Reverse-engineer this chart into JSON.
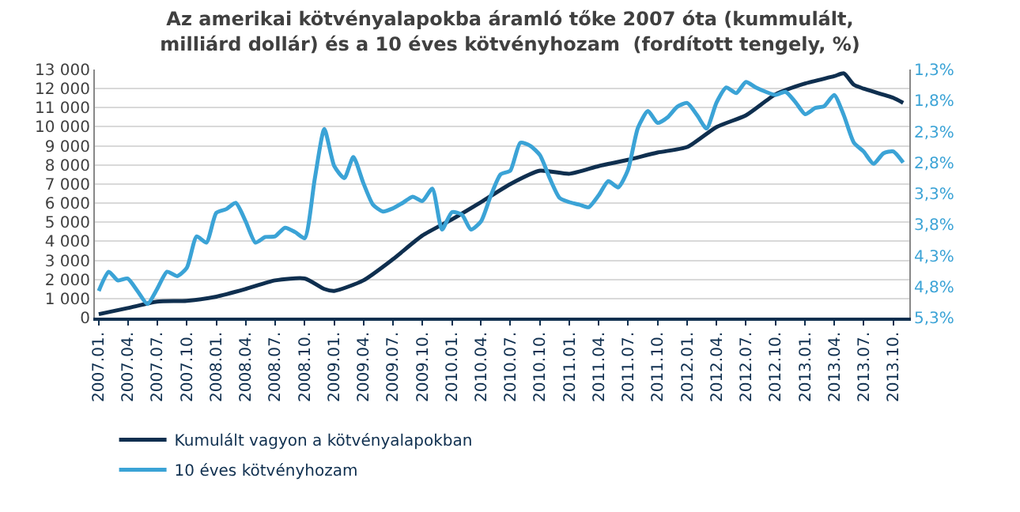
{
  "chart_data": {
    "type": "line",
    "title": "Az amerikai kötvényalapokba áramló tőke 2007 óta (kummulált,\nmilliárd dollár) és a 10 éves kötvényhozam  (fordított tengely, %)",
    "x": [
      "2007-01",
      "2007-02",
      "2007-03",
      "2007-04",
      "2007-05",
      "2007-06",
      "2007-07",
      "2007-08",
      "2007-09",
      "2007-10",
      "2007-11",
      "2007-12",
      "2008-01",
      "2008-02",
      "2008-03",
      "2008-04",
      "2008-05",
      "2008-06",
      "2008-07",
      "2008-08",
      "2008-09",
      "2008-10",
      "2008-11",
      "2008-12",
      "2009-01",
      "2009-02",
      "2009-03",
      "2009-04",
      "2009-05",
      "2009-06",
      "2009-07",
      "2009-08",
      "2009-09",
      "2009-10",
      "2009-11",
      "2009-12",
      "2010-01",
      "2010-02",
      "2010-03",
      "2010-04",
      "2010-05",
      "2010-06",
      "2010-07",
      "2010-08",
      "2010-09",
      "2010-10",
      "2010-11",
      "2010-12",
      "2011-01",
      "2011-02",
      "2011-03",
      "2011-04",
      "2011-05",
      "2011-06",
      "2011-07",
      "2011-08",
      "2011-09",
      "2011-10",
      "2011-11",
      "2011-12",
      "2012-01",
      "2012-02",
      "2012-03",
      "2012-04",
      "2012-05",
      "2012-06",
      "2012-07",
      "2012-08",
      "2012-09",
      "2012-10",
      "2012-11",
      "2012-12",
      "2013-01",
      "2013-02",
      "2013-03",
      "2013-04",
      "2013-05",
      "2013-06",
      "2013-07",
      "2013-08",
      "2013-09",
      "2013-10",
      "2013-11"
    ],
    "series": [
      {
        "name": "Kumulált vagyon a kötvényalapokban",
        "color": "#0f2f4f",
        "x": [
          "2007-01",
          "2007-04",
          "2007-07",
          "2007-10",
          "2008-01",
          "2008-04",
          "2008-07",
          "2008-10",
          "2008-12",
          "2009-01",
          "2009-04",
          "2009-07",
          "2009-10",
          "2010-01",
          "2010-04",
          "2010-07",
          "2010-10",
          "2011-01",
          "2011-04",
          "2011-07",
          "2011-10",
          "2012-01",
          "2012-04",
          "2012-07",
          "2012-10",
          "2013-01",
          "2013-04",
          "2013-05",
          "2013-06",
          "2013-07",
          "2013-10",
          "2013-11"
        ],
        "values": [
          180,
          500,
          840,
          880,
          1100,
          1500,
          1950,
          2050,
          1500,
          1400,
          1950,
          3050,
          4300,
          5150,
          6050,
          7000,
          7700,
          7540,
          7940,
          8270,
          8650,
          8940,
          9990,
          10600,
          11700,
          12270,
          12650,
          12800,
          12200,
          12000,
          11520,
          11250
        ]
      },
      {
        "name": "10 éves kötvényhozam",
        "color": "#3ba3d6",
        "axis": "y2",
        "values": [
          4.87,
          4.56,
          4.7,
          4.67,
          4.87,
          5.08,
          4.84,
          4.56,
          4.63,
          4.5,
          3.99,
          4.09,
          3.61,
          3.55,
          3.45,
          3.75,
          4.09,
          4.0,
          3.99,
          3.85,
          3.92,
          4.02,
          3.07,
          2.26,
          2.86,
          3.05,
          2.71,
          3.13,
          3.48,
          3.59,
          3.54,
          3.45,
          3.35,
          3.42,
          3.22,
          3.88,
          3.6,
          3.64,
          3.88,
          3.75,
          3.34,
          2.99,
          2.93,
          2.48,
          2.53,
          2.68,
          3.06,
          3.37,
          3.44,
          3.48,
          3.52,
          3.33,
          3.1,
          3.2,
          2.92,
          2.24,
          1.97,
          2.16,
          2.07,
          1.9,
          1.84,
          2.04,
          2.25,
          1.83,
          1.59,
          1.68,
          1.5,
          1.59,
          1.66,
          1.71,
          1.66,
          1.82,
          2.02,
          1.92,
          1.89,
          1.71,
          2.04,
          2.48,
          2.62,
          2.82,
          2.65,
          2.62,
          2.8
        ]
      }
    ],
    "xlim": [
      "2006-12-20",
      "2013-11-20"
    ],
    "xticks": [
      {
        "value": "2007-01",
        "label": "2007.01."
      },
      {
        "value": "2007-04",
        "label": "2007.04."
      },
      {
        "value": "2007-07",
        "label": "2007.07."
      },
      {
        "value": "2007-10",
        "label": "2007.10."
      },
      {
        "value": "2008-01",
        "label": "2008.01."
      },
      {
        "value": "2008-04",
        "label": "2008.04."
      },
      {
        "value": "2008-07",
        "label": "2008.07."
      },
      {
        "value": "2008-10",
        "label": "2008.10."
      },
      {
        "value": "2009-01",
        "label": "2009.01."
      },
      {
        "value": "2009-04",
        "label": "2009.04."
      },
      {
        "value": "2009-07",
        "label": "2009.07."
      },
      {
        "value": "2009-10",
        "label": "2009.10."
      },
      {
        "value": "2010-01",
        "label": "2010.01."
      },
      {
        "value": "2010-04",
        "label": "2010.04."
      },
      {
        "value": "2010-07",
        "label": "2010.07."
      },
      {
        "value": "2010-10",
        "label": "2010.10."
      },
      {
        "value": "2011-01",
        "label": "2011.01."
      },
      {
        "value": "2011-04",
        "label": "2011.04."
      },
      {
        "value": "2011-07",
        "label": "2011.07."
      },
      {
        "value": "2011-10",
        "label": "2011.10."
      },
      {
        "value": "2012-01",
        "label": "2012.01."
      },
      {
        "value": "2012-04",
        "label": "2012.04."
      },
      {
        "value": "2012-07",
        "label": "2012.07."
      },
      {
        "value": "2012-10",
        "label": "2012.10."
      },
      {
        "value": "2013-01",
        "label": "2013.01."
      },
      {
        "value": "2013-04",
        "label": "2013.04."
      },
      {
        "value": "2013-07",
        "label": "2013.07."
      },
      {
        "value": "2013-10",
        "label": "2013.10."
      }
    ],
    "ylim": [
      0,
      13000
    ],
    "yticks": [
      0,
      {
        "value": 1000,
        "label": "1 000"
      },
      {
        "value": 2000,
        "label": "2 000"
      },
      {
        "value": 3000,
        "label": "3 000"
      },
      {
        "value": 4000,
        "label": "4 000"
      },
      {
        "value": 5000,
        "label": "5 000"
      },
      {
        "value": 6000,
        "label": "6 000"
      },
      {
        "value": 7000,
        "label": "7 000"
      },
      {
        "value": 8000,
        "label": "8 000"
      },
      {
        "value": 9000,
        "label": "9 000"
      },
      {
        "value": 10000,
        "label": "10 000"
      },
      {
        "value": 11000,
        "label": "11 000"
      },
      {
        "value": 12000,
        "label": "12 000"
      },
      {
        "value": 13000,
        "label": "13 000"
      }
    ],
    "y2lim": [
      5.3,
      1.3
    ],
    "y2ticks": [
      {
        "value": 1.3,
        "label": "1,3%"
      },
      {
        "value": 1.8,
        "label": "1,8%"
      },
      {
        "value": 2.3,
        "label": "2,3%"
      },
      {
        "value": 2.8,
        "label": "2,8%"
      },
      {
        "value": 3.3,
        "label": "3,3%"
      },
      {
        "value": 3.8,
        "label": "3,8%"
      },
      {
        "value": 4.3,
        "label": "4,3%"
      },
      {
        "value": 4.8,
        "label": "4,8%"
      },
      {
        "value": 5.3,
        "label": "5,3%"
      }
    ],
    "grid": "y",
    "legend": "bottom left",
    "marker": "none",
    "line_style": "solid"
  }
}
